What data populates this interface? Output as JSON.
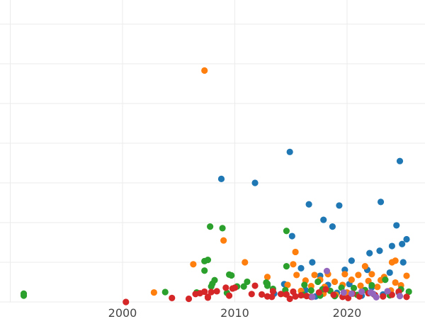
{
  "chart_data": {
    "type": "scatter",
    "title": "",
    "xlabel": "",
    "ylabel": "",
    "xlim": [
      1989,
      2027
    ],
    "ylim": [
      0,
      74
    ],
    "x_ticks": [
      2000,
      2010,
      2020
    ],
    "x_tick_labels": [
      "2000",
      "2010",
      "2020"
    ],
    "x_gridlines": [
      1990,
      2000,
      2010,
      2020
    ],
    "y_gridlines": [
      0,
      10,
      20,
      30,
      40,
      50,
      60,
      70
    ],
    "y_tick_labels_visible": false,
    "grid": true,
    "legend": "none",
    "colors": {
      "blue": "#1f77b4",
      "orange": "#ff7f0e",
      "green": "#2ca02c",
      "red": "#d62728",
      "purple": "#9467bd"
    },
    "series": [
      {
        "color": "#1f77b4",
        "points": [
          [
            2014.9,
            37.8
          ],
          [
            2008.8,
            31.0
          ],
          [
            2011.8,
            30.0
          ],
          [
            2024.7,
            35.5
          ],
          [
            2016.6,
            24.6
          ],
          [
            2019.3,
            24.3
          ],
          [
            2023.0,
            25.2
          ],
          [
            2017.9,
            20.7
          ],
          [
            2018.7,
            19.0
          ],
          [
            2024.4,
            19.3
          ],
          [
            2015.1,
            16.6
          ],
          [
            2025.3,
            15.8
          ],
          [
            2024.9,
            14.6
          ],
          [
            2024.0,
            14.1
          ],
          [
            2022.9,
            12.9
          ],
          [
            2022.0,
            12.3
          ],
          [
            2020.4,
            10.4
          ],
          [
            2016.9,
            10.0
          ],
          [
            2025.0,
            10.0
          ],
          [
            2015.9,
            8.5
          ],
          [
            2019.8,
            8.1
          ],
          [
            2021.8,
            8.1
          ],
          [
            2023.8,
            7.4
          ],
          [
            2017.6,
            6.6
          ],
          [
            2014.4,
            4.5
          ],
          [
            2018.3,
            4.3
          ],
          [
            2020.2,
            4.5
          ],
          [
            2022.2,
            3.7
          ],
          [
            2016.3,
            3.0
          ],
          [
            2019.1,
            2.3
          ],
          [
            2021.3,
            1.6
          ],
          [
            2023.2,
            1.9
          ],
          [
            2024.6,
            2.4
          ],
          [
            2017.2,
            1.4
          ],
          [
            2013.5,
            2.1
          ]
        ]
      },
      {
        "color": "#ff7f0e",
        "points": [
          [
            2007.3,
            58.3
          ],
          [
            2009.0,
            15.5
          ],
          [
            2015.4,
            12.6
          ],
          [
            2006.3,
            9.5
          ],
          [
            2010.9,
            10.0
          ],
          [
            2015.2,
            9.5
          ],
          [
            2024.0,
            10.0
          ],
          [
            2024.3,
            10.4
          ],
          [
            2021.6,
            9.0
          ],
          [
            2012.9,
            6.3
          ],
          [
            2015.5,
            6.8
          ],
          [
            2017.1,
            6.8
          ],
          [
            2018.3,
            7.0
          ],
          [
            2019.8,
            7.0
          ],
          [
            2021.0,
            6.8
          ],
          [
            2022.2,
            7.0
          ],
          [
            2023.3,
            6.3
          ],
          [
            2025.3,
            6.6
          ],
          [
            2016.3,
            5.4
          ],
          [
            2017.6,
            5.6
          ],
          [
            2018.9,
            5.1
          ],
          [
            2020.4,
            5.6
          ],
          [
            2021.9,
            5.3
          ],
          [
            2023.0,
            5.5
          ],
          [
            2024.3,
            4.9
          ],
          [
            2014.7,
            4.3
          ],
          [
            2016.8,
            4.0
          ],
          [
            2018.0,
            3.8
          ],
          [
            2019.6,
            4.3
          ],
          [
            2021.2,
            4.1
          ],
          [
            2022.7,
            3.8
          ],
          [
            2024.8,
            4.2
          ],
          [
            2002.8,
            2.4
          ],
          [
            2015.9,
            2.8
          ],
          [
            2017.9,
            2.1
          ],
          [
            2020.0,
            2.4
          ],
          [
            2023.9,
            2.9
          ],
          [
            2014.4,
            2.1
          ],
          [
            2019.0,
            1.8
          ]
        ]
      },
      {
        "color": "#2ca02c",
        "points": [
          [
            1991.2,
            2.1
          ],
          [
            1991.2,
            1.6
          ],
          [
            2003.8,
            2.5
          ],
          [
            2006.6,
            2.4
          ],
          [
            2007.8,
            19.0
          ],
          [
            2008.9,
            18.6
          ],
          [
            2007.3,
            10.3
          ],
          [
            2007.6,
            10.6
          ],
          [
            2007.3,
            7.9
          ],
          [
            2009.5,
            6.9
          ],
          [
            2009.7,
            6.7
          ],
          [
            2008.2,
            5.5
          ],
          [
            2008.0,
            4.6
          ],
          [
            2007.9,
            3.9
          ],
          [
            2010.2,
            3.9
          ],
          [
            2010.8,
            3.9
          ],
          [
            2011.1,
            5.1
          ],
          [
            2012.8,
            4.9
          ],
          [
            2012.9,
            4.6
          ],
          [
            2012.9,
            4.1
          ],
          [
            2014.6,
            17.9
          ],
          [
            2014.6,
            9.0
          ],
          [
            2013.4,
            3.3
          ],
          [
            2014.5,
            3.0
          ],
          [
            2016.2,
            4.3
          ],
          [
            2016.8,
            2.9
          ],
          [
            2017.4,
            5.1
          ],
          [
            2017.8,
            3.2
          ],
          [
            2018.5,
            2.8
          ],
          [
            2019.5,
            3.6
          ],
          [
            2020.6,
            3.5
          ],
          [
            2021.6,
            3.0
          ],
          [
            2022.2,
            4.2
          ],
          [
            2023.4,
            5.6
          ],
          [
            2024.8,
            3.2
          ],
          [
            2025.5,
            2.6
          ],
          [
            2016.1,
            1.8
          ],
          [
            2017.6,
            1.6
          ],
          [
            2018.9,
            1.5
          ],
          [
            2020.9,
            1.8
          ],
          [
            2022.4,
            1.9
          ],
          [
            2023.8,
            1.7
          ],
          [
            2009.3,
            2.3
          ]
        ]
      },
      {
        "color": "#d62728",
        "points": [
          [
            2000.3,
            0.0
          ],
          [
            2004.4,
            1.0
          ],
          [
            2005.9,
            0.8
          ],
          [
            2006.5,
            2.0
          ],
          [
            2006.9,
            2.2
          ],
          [
            2007.3,
            2.6
          ],
          [
            2007.6,
            1.3
          ],
          [
            2007.6,
            1.1
          ],
          [
            2007.9,
            2.5
          ],
          [
            2008.4,
            2.7
          ],
          [
            2009.2,
            3.6
          ],
          [
            2009.5,
            1.6
          ],
          [
            2009.8,
            3.4
          ],
          [
            2010.0,
            3.6
          ],
          [
            2011.5,
            2.0
          ],
          [
            2011.8,
            4.1
          ],
          [
            2012.4,
            1.9
          ],
          [
            2012.9,
            1.4
          ],
          [
            2013.3,
            1.3
          ],
          [
            2013.4,
            2.7
          ],
          [
            2014.1,
            2.0
          ],
          [
            2014.6,
            1.9
          ],
          [
            2014.9,
            0.8
          ],
          [
            2015.2,
            2.6
          ],
          [
            2015.4,
            1.4
          ],
          [
            2015.9,
            1.7
          ],
          [
            2016.4,
            1.5
          ],
          [
            2016.8,
            1.3
          ],
          [
            2017.5,
            2.4
          ],
          [
            2018.1,
            3.2
          ],
          [
            2018.8,
            1.8
          ],
          [
            2019.6,
            1.3
          ],
          [
            2020.1,
            1.0
          ],
          [
            2020.5,
            2.1
          ],
          [
            2021.1,
            1.4
          ],
          [
            2021.9,
            2.2
          ],
          [
            2022.5,
            1.7
          ],
          [
            2023.2,
            1.4
          ],
          [
            2024.0,
            1.8
          ],
          [
            2024.6,
            2.6
          ],
          [
            2025.3,
            1.3
          ]
        ]
      },
      {
        "color": "#9467bd",
        "points": [
          [
            2018.2,
            7.8
          ],
          [
            2016.9,
            1.3
          ],
          [
            2019.7,
            2.4
          ],
          [
            2020.4,
            2.1
          ],
          [
            2021.3,
            2.6
          ],
          [
            2022.1,
            2.4
          ],
          [
            2022.3,
            2.1
          ],
          [
            2022.6,
            1.2
          ],
          [
            2023.6,
            2.7
          ],
          [
            2024.7,
            1.5
          ]
        ]
      }
    ]
  }
}
